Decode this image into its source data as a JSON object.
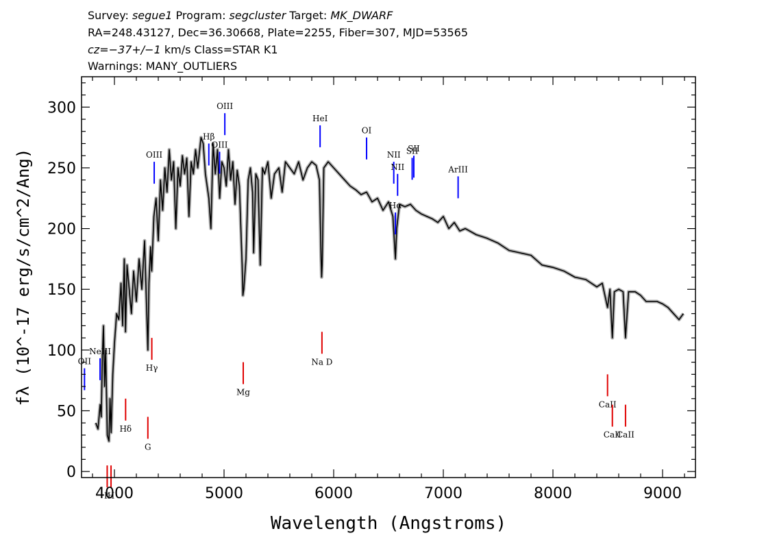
{
  "header": {
    "line1": [
      {
        "t": "Survey: ",
        "i": false
      },
      {
        "t": "segue1",
        "i": true
      },
      {
        "t": " Program: ",
        "i": false
      },
      {
        "t": "segcluster",
        "i": true
      },
      {
        "t": " Target: ",
        "i": false
      },
      {
        "t": "MK_DWARF",
        "i": true
      }
    ],
    "line2": "RA=248.43127, Dec=36.30668, Plate=2255, Fiber=307, MJD=53565",
    "line3": [
      {
        "t": "cz=",
        "i": true
      },
      {
        "t": "−37+/−1",
        "i": true
      },
      {
        "t": " km/s Class=STAR K1",
        "i": false
      }
    ],
    "line4": "Warnings: MANY_OUTLIERS"
  },
  "colors": {
    "spectrum": "#000000",
    "error_band": "#b0b0b0",
    "emission_line": "#0000ff",
    "absorption_line": "#e00000"
  },
  "chart_data": {
    "type": "line",
    "title": "",
    "xlabel": "Wavelength (Angstroms)",
    "ylabel": "fλ (10^-17 erg/s/cm^2/Ang)",
    "xlim": [
      3700,
      9300
    ],
    "ylim": [
      -5,
      325
    ],
    "x_ticks": [
      4000,
      5000,
      6000,
      7000,
      8000,
      9000
    ],
    "y_ticks": [
      0,
      50,
      100,
      150,
      200,
      250,
      300
    ],
    "grid": false,
    "series": [
      {
        "points": [
          [
            3830,
            40
          ],
          [
            3850,
            35
          ],
          [
            3870,
            55
          ],
          [
            3880,
            45
          ],
          [
            3890,
            95
          ],
          [
            3900,
            120
          ],
          [
            3910,
            70
          ],
          [
            3920,
            100
          ],
          [
            3935,
            30
          ],
          [
            3950,
            25
          ],
          [
            3960,
            60
          ],
          [
            3970,
            32
          ],
          [
            3985,
            80
          ],
          [
            4000,
            105
          ],
          [
            4020,
            130
          ],
          [
            4040,
            125
          ],
          [
            4060,
            155
          ],
          [
            4075,
            120
          ],
          [
            4090,
            175
          ],
          [
            4101,
            115
          ],
          [
            4115,
            170
          ],
          [
            4135,
            150
          ],
          [
            4155,
            130
          ],
          [
            4175,
            165
          ],
          [
            4200,
            140
          ],
          [
            4225,
            175
          ],
          [
            4250,
            150
          ],
          [
            4275,
            190
          ],
          [
            4305,
            100
          ],
          [
            4315,
            155
          ],
          [
            4330,
            185
          ],
          [
            4340,
            165
          ],
          [
            4360,
            210
          ],
          [
            4380,
            225
          ],
          [
            4400,
            190
          ],
          [
            4420,
            240
          ],
          [
            4440,
            215
          ],
          [
            4460,
            250
          ],
          [
            4480,
            230
          ],
          [
            4500,
            265
          ],
          [
            4520,
            240
          ],
          [
            4540,
            255
          ],
          [
            4560,
            200
          ],
          [
            4580,
            250
          ],
          [
            4600,
            235
          ],
          [
            4620,
            260
          ],
          [
            4640,
            245
          ],
          [
            4660,
            258
          ],
          [
            4680,
            210
          ],
          [
            4700,
            255
          ],
          [
            4720,
            245
          ],
          [
            4740,
            265
          ],
          [
            4760,
            250
          ],
          [
            4790,
            275
          ],
          [
            4810,
            270
          ],
          [
            4830,
            245
          ],
          [
            4861,
            225
          ],
          [
            4880,
            200
          ],
          [
            4900,
            270
          ],
          [
            4920,
            245
          ],
          [
            4940,
            265
          ],
          [
            4960,
            225
          ],
          [
            4980,
            255
          ],
          [
            5000,
            250
          ],
          [
            5020,
            235
          ],
          [
            5040,
            265
          ],
          [
            5060,
            240
          ],
          [
            5080,
            255
          ],
          [
            5100,
            220
          ],
          [
            5120,
            248
          ],
          [
            5140,
            235
          ],
          [
            5165,
            170
          ],
          [
            5172,
            145
          ],
          [
            5180,
            150
          ],
          [
            5200,
            175
          ],
          [
            5220,
            240
          ],
          [
            5240,
            250
          ],
          [
            5260,
            230
          ],
          [
            5270,
            180
          ],
          [
            5290,
            245
          ],
          [
            5310,
            240
          ],
          [
            5330,
            170
          ],
          [
            5350,
            250
          ],
          [
            5370,
            245
          ],
          [
            5400,
            255
          ],
          [
            5430,
            225
          ],
          [
            5460,
            245
          ],
          [
            5500,
            250
          ],
          [
            5530,
            230
          ],
          [
            5560,
            255
          ],
          [
            5600,
            250
          ],
          [
            5640,
            245
          ],
          [
            5680,
            255
          ],
          [
            5720,
            240
          ],
          [
            5760,
            250
          ],
          [
            5800,
            255
          ],
          [
            5840,
            252
          ],
          [
            5870,
            240
          ],
          [
            5885,
            175
          ],
          [
            5890,
            160
          ],
          [
            5895,
            170
          ],
          [
            5910,
            250
          ],
          [
            5950,
            255
          ],
          [
            6000,
            250
          ],
          [
            6050,
            245
          ],
          [
            6100,
            240
          ],
          [
            6150,
            235
          ],
          [
            6200,
            232
          ],
          [
            6250,
            228
          ],
          [
            6300,
            230
          ],
          [
            6350,
            222
          ],
          [
            6400,
            225
          ],
          [
            6450,
            215
          ],
          [
            6500,
            222
          ],
          [
            6540,
            210
          ],
          [
            6563,
            175
          ],
          [
            6575,
            200
          ],
          [
            6600,
            220
          ],
          [
            6650,
            218
          ],
          [
            6700,
            220
          ],
          [
            6750,
            215
          ],
          [
            6800,
            212
          ],
          [
            6850,
            210
          ],
          [
            6900,
            208
          ],
          [
            6950,
            205
          ],
          [
            7000,
            210
          ],
          [
            7050,
            200
          ],
          [
            7100,
            205
          ],
          [
            7150,
            198
          ],
          [
            7200,
            200
          ],
          [
            7300,
            195
          ],
          [
            7400,
            192
          ],
          [
            7500,
            188
          ],
          [
            7600,
            182
          ],
          [
            7700,
            180
          ],
          [
            7800,
            178
          ],
          [
            7900,
            170
          ],
          [
            8000,
            168
          ],
          [
            8100,
            165
          ],
          [
            8200,
            160
          ],
          [
            8300,
            158
          ],
          [
            8400,
            152
          ],
          [
            8450,
            155
          ],
          [
            8498,
            135
          ],
          [
            8520,
            150
          ],
          [
            8542,
            110
          ],
          [
            8560,
            148
          ],
          [
            8600,
            150
          ],
          [
            8640,
            148
          ],
          [
            8662,
            110
          ],
          [
            8690,
            148
          ],
          [
            8750,
            148
          ],
          [
            8800,
            145
          ],
          [
            8850,
            140
          ],
          [
            8900,
            140
          ],
          [
            8950,
            140
          ],
          [
            9000,
            138
          ],
          [
            9050,
            135
          ],
          [
            9100,
            130
          ],
          [
            9150,
            125
          ],
          [
            9190,
            130
          ]
        ]
      }
    ],
    "line_markers": [
      {
        "label": "OII",
        "x": 3727,
        "kind": "emission"
      },
      {
        "label": "NeIII",
        "x": 3869,
        "kind": "emission"
      },
      {
        "label": "K",
        "x": 3934,
        "kind": "absorption"
      },
      {
        "label": "H",
        "x": 3969,
        "kind": "absorption"
      },
      {
        "label": "Hδ",
        "x": 4102,
        "kind": "absorption"
      },
      {
        "label": "G",
        "x": 4305,
        "kind": "absorption"
      },
      {
        "label": "Hγ",
        "x": 4341,
        "kind": "absorption"
      },
      {
        "label": "OIII",
        "x": 4363,
        "kind": "emission"
      },
      {
        "label": "Hβ",
        "x": 4861,
        "kind": "emission"
      },
      {
        "label": "OIII",
        "x": 4959,
        "kind": "emission"
      },
      {
        "label": "OIII",
        "x": 5007,
        "kind": "emission"
      },
      {
        "label": "Mg",
        "x": 5175,
        "kind": "absorption"
      },
      {
        "label": "HeI",
        "x": 5876,
        "kind": "emission"
      },
      {
        "label": "Na D",
        "x": 5893,
        "kind": "absorption"
      },
      {
        "label": "OI",
        "x": 6300,
        "kind": "emission"
      },
      {
        "label": "NII",
        "x": 6548,
        "kind": "emission"
      },
      {
        "label": "Hα",
        "x": 6563,
        "kind": "emission"
      },
      {
        "label": "NII",
        "x": 6583,
        "kind": "emission"
      },
      {
        "label": "SII",
        "x": 6716,
        "kind": "emission"
      },
      {
        "label": "SII",
        "x": 6731,
        "kind": "emission"
      },
      {
        "label": "ArIII",
        "x": 7135,
        "kind": "emission"
      },
      {
        "label": "CaII",
        "x": 8498,
        "kind": "absorption"
      },
      {
        "label": "CaII",
        "x": 8542,
        "kind": "absorption"
      },
      {
        "label": "CaII",
        "x": 8662,
        "kind": "absorption"
      }
    ]
  }
}
